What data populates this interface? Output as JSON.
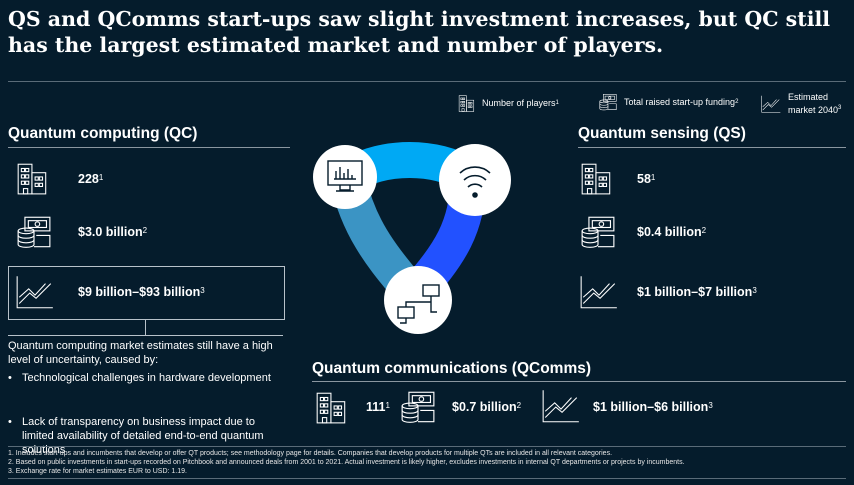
{
  "title": "QS and QComms start-ups saw slight investment increases, but QC still has the largest estimated market and number of players.",
  "legend": {
    "players": "Number of players",
    "players_sup": "1",
    "funding": "Total raised start-up funding",
    "funding_sup": "2",
    "market": "Estimated market 2040",
    "market_sup": "3"
  },
  "qc": {
    "heading": "Quantum computing (QC)",
    "players": "228",
    "players_sup": "1",
    "funding": "$3.0 billion",
    "funding_sup": "2",
    "market": "$9 billion–$93 billion",
    "market_sup": "3",
    "note": "Quantum computing market estimates still have a high level of uncertainty, caused by:",
    "bullets": [
      "Technological challenges in hardware development",
      "Lack of transparency on business impact due to limited availability of detailed end-to-end quantum solutions"
    ]
  },
  "qs": {
    "heading": "Quantum sensing (QS)",
    "players": "58",
    "players_sup": "1",
    "funding": "$0.4 billion",
    "funding_sup": "2",
    "market": "$1 billion–$7 billion",
    "market_sup": "3"
  },
  "qcomms": {
    "heading": "Quantum communications (QComms)",
    "players": "111",
    "players_sup": "1",
    "funding": "$0.7 billion",
    "funding_sup": "2",
    "market": "$1 billion–$6 billion",
    "market_sup": "3"
  },
  "footnotes": [
    "1. Includes start-ups and incumbents that develop or offer QT products; see methodology page for details. Companies that develop products for multiple QTs are included in all relevant categories.",
    "2. Based on public investments in start-ups recorded on Pitchbook and announced deals from 2001 to 2021. Actual investment is likely higher, excludes investments in internal QT departments or projects by incumbents.",
    "3. Exchange rate for market estimates EUR to USD: 1.19."
  ],
  "colors": {
    "background": "#051c2c",
    "ring_light": "#00a9f4",
    "ring_mid": "#3b94c4",
    "ring_dark": "#2251ff"
  }
}
